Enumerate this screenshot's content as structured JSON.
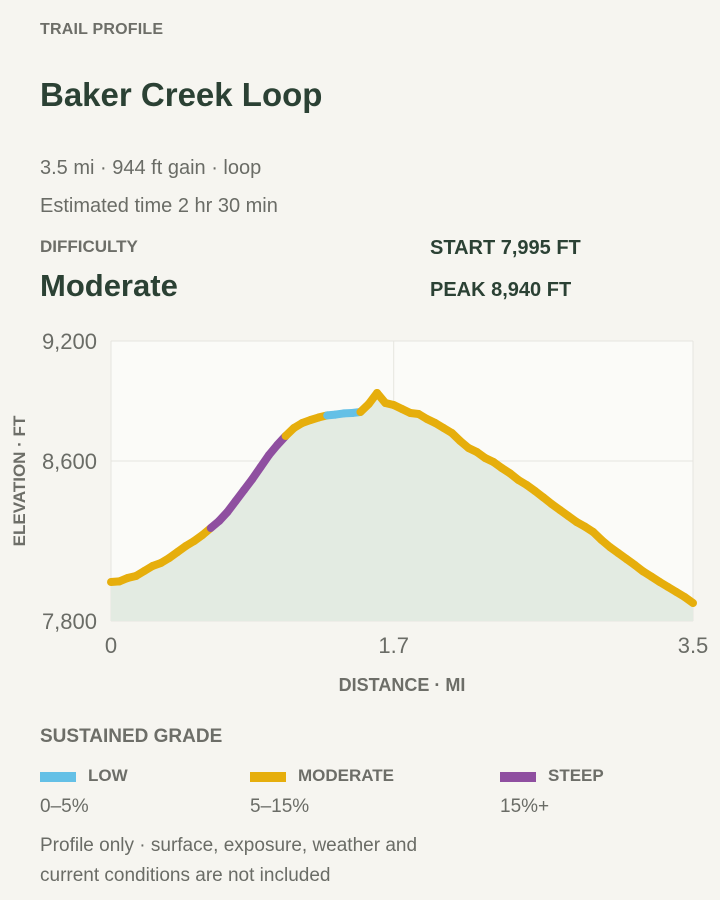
{
  "header": {
    "eyebrow": "TRAIL PROFILE",
    "title": "Baker Creek Loop",
    "summary": "3.5 mi · 944 ft gain · loop",
    "estimate": "Estimated time 2 hr 30 min"
  },
  "difficulty": {
    "label": "DIFFICULTY",
    "value": "Moderate"
  },
  "stats": {
    "start": "START 7,995 FT",
    "peak": "PEAK 8,940 FT"
  },
  "chart_data": {
    "type": "area",
    "xlabel": "DISTANCE · MI",
    "ylabel": "ELEVATION · FT",
    "xlim": [
      0,
      3.5
    ],
    "ylim": [
      7800,
      9200
    ],
    "xticks": [
      0,
      1.7,
      3.5
    ],
    "xtick_labels": [
      "0",
      "1.7",
      "3.5"
    ],
    "yticks": [
      7800,
      8600,
      9200
    ],
    "ytick_labels": [
      "7,800",
      "8,600",
      "9,200"
    ],
    "grid": true,
    "grade_colors": {
      "low": "#64c0e6",
      "moderate": "#e6ae0c",
      "steep": "#8f4fa0"
    },
    "fill_color": "#e3ebe2",
    "x": [
      0,
      0.05,
      0.1,
      0.15,
      0.2,
      0.25,
      0.3,
      0.35,
      0.4,
      0.45,
      0.5,
      0.55,
      0.6,
      0.65,
      0.7,
      0.75,
      0.8,
      0.85,
      0.9,
      0.95,
      1.0,
      1.05,
      1.1,
      1.15,
      1.2,
      1.25,
      1.3,
      1.35,
      1.4,
      1.45,
      1.5,
      1.55,
      1.6,
      1.65,
      1.7,
      1.75,
      1.8,
      1.85,
      1.9,
      1.95,
      2.0,
      2.05,
      2.1,
      2.15,
      2.2,
      2.25,
      2.3,
      2.35,
      2.4,
      2.45,
      2.5,
      2.55,
      2.6,
      2.65,
      2.7,
      2.75,
      2.8,
      2.85,
      2.9,
      2.95,
      3.0,
      3.05,
      3.1,
      3.15,
      3.2,
      3.25,
      3.3,
      3.35,
      3.4,
      3.45,
      3.5
    ],
    "y": [
      7995,
      7998,
      8015,
      8025,
      8050,
      8075,
      8090,
      8115,
      8145,
      8175,
      8200,
      8230,
      8265,
      8300,
      8345,
      8400,
      8455,
      8510,
      8570,
      8630,
      8680,
      8725,
      8765,
      8790,
      8805,
      8818,
      8828,
      8832,
      8838,
      8840,
      8845,
      8885,
      8940,
      8890,
      8880,
      8860,
      8840,
      8835,
      8810,
      8790,
      8765,
      8740,
      8700,
      8665,
      8645,
      8615,
      8595,
      8565,
      8538,
      8505,
      8480,
      8450,
      8418,
      8385,
      8355,
      8325,
      8295,
      8272,
      8245,
      8205,
      8170,
      8140,
      8110,
      8080,
      8048,
      8022,
      7995,
      7970,
      7945,
      7920,
      7890
    ],
    "grade": [
      "moderate",
      "moderate",
      "moderate",
      "moderate",
      "moderate",
      "moderate",
      "moderate",
      "moderate",
      "moderate",
      "moderate",
      "moderate",
      "moderate",
      "steep",
      "steep",
      "steep",
      "steep",
      "steep",
      "steep",
      "steep",
      "steep",
      "steep",
      "moderate",
      "moderate",
      "moderate",
      "moderate",
      "moderate",
      "low",
      "low",
      "low",
      "low",
      "moderate",
      "moderate",
      "moderate",
      "moderate",
      "moderate",
      "moderate",
      "moderate",
      "moderate",
      "moderate",
      "moderate",
      "moderate",
      "moderate",
      "moderate",
      "moderate",
      "moderate",
      "moderate",
      "moderate",
      "moderate",
      "moderate",
      "moderate",
      "moderate",
      "moderate",
      "moderate",
      "moderate",
      "moderate",
      "moderate",
      "moderate",
      "moderate",
      "moderate",
      "moderate",
      "moderate",
      "moderate",
      "moderate",
      "moderate",
      "moderate",
      "moderate",
      "moderate",
      "moderate",
      "moderate",
      "moderate"
    ]
  },
  "legend": {
    "title": "SUSTAINED GRADE",
    "items": [
      {
        "key": "low",
        "label": "LOW",
        "range": "0–5%",
        "color": "#64c0e6"
      },
      {
        "key": "moderate",
        "label": "MODERATE",
        "range": "5–15%",
        "color": "#e6ae0c"
      },
      {
        "key": "steep",
        "label": "STEEP",
        "range": "15%+",
        "color": "#8f4fa0"
      }
    ]
  },
  "footnote": "Profile only · surface, exposure, weather and current conditions are not included"
}
